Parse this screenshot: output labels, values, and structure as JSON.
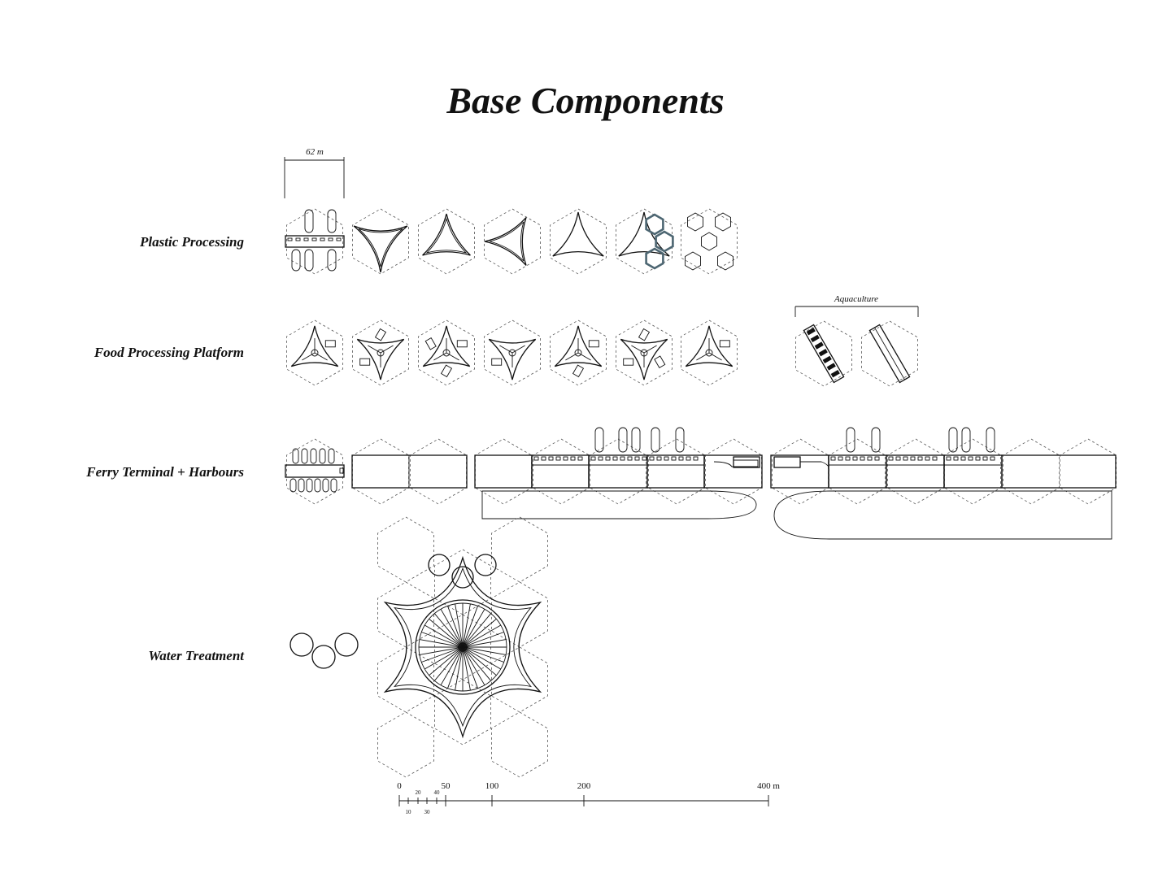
{
  "title": "Base Components",
  "dimension_label": "62 m",
  "rows": [
    {
      "label": "Plastic Processing"
    },
    {
      "label": "Food Processing Platform"
    },
    {
      "label": "Ferry Terminal + Harbours"
    },
    {
      "label": "Water Treatment"
    }
  ],
  "aquaculture_label": "Aquaculture",
  "scale_bar": {
    "major_labels": [
      "0",
      "50",
      "100",
      "200",
      "400 m"
    ],
    "minor_labels_top": [
      "20",
      "40"
    ],
    "minor_labels_bottom": [
      "10",
      "30"
    ]
  },
  "colors": {
    "ink": "#111111",
    "hex_accent": "#4d6672"
  }
}
